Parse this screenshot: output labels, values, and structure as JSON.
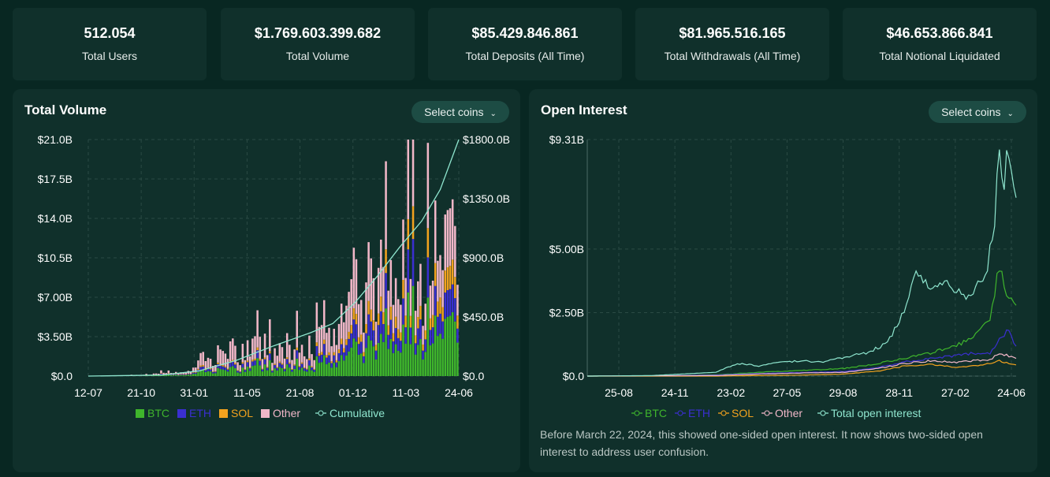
{
  "stats": [
    {
      "value": "512.054",
      "label": "Total Users"
    },
    {
      "value": "$1.769.603.399.682",
      "label": "Total Volume"
    },
    {
      "value": "$85.429.846.861",
      "label": "Total Deposits (All Time)"
    },
    {
      "value": "$81.965.516.165",
      "label": "Total Withdrawals (All Time)"
    },
    {
      "value": "$46.653.866.841",
      "label": "Total Notional Liquidated"
    }
  ],
  "volume_panel": {
    "title": "Total Volume",
    "select_label": "Select coins"
  },
  "oi_panel": {
    "title": "Open Interest",
    "select_label": "Select coins",
    "note": "Before March 22, 2024, this showed one-sided open interest. It now shows two-sided open interest to address user confusion."
  },
  "colors": {
    "btc": "#3fb52c",
    "eth": "#3a2fd0",
    "sol": "#f2a21e",
    "other": "#f1b7c8",
    "cumulative": "#8fe6cf",
    "total_oi": "#8fe6cf"
  },
  "chart_data": [
    {
      "type": "bar",
      "title": "Total Volume",
      "stacked": true,
      "x_ticks": [
        "12-07",
        "21-10",
        "31-01",
        "11-05",
        "21-08",
        "01-12",
        "11-03",
        "24-06"
      ],
      "y_left_ticks": [
        "$0.0",
        "$3.50B",
        "$7.00B",
        "$10.5B",
        "$14.0B",
        "$17.5B",
        "$21.0B"
      ],
      "y_left_lim": [
        0,
        21
      ],
      "y_right_ticks": [
        "$0.0",
        "$450.0B",
        "$900.0B",
        "$1350.0B",
        "$1800.0B"
      ],
      "y_right_lim": [
        0,
        1800
      ],
      "legend": [
        "BTC",
        "ETH",
        "SOL",
        "Other",
        "Cumulative"
      ],
      "legend_position": "bottom",
      "series": [
        {
          "name": "BTC",
          "points": [
            [
              0,
              0.0
            ],
            [
              0.08,
              0.0
            ],
            [
              0.2,
              0.05
            ],
            [
              0.3,
              0.25
            ],
            [
              0.4,
              0.55
            ],
            [
              0.5,
              0.7
            ],
            [
              0.6,
              0.6
            ],
            [
              0.66,
              0.9
            ],
            [
              0.72,
              2.0
            ],
            [
              0.78,
              2.6
            ],
            [
              0.84,
              2.8
            ],
            [
              0.9,
              3.0
            ],
            [
              0.95,
              3.4
            ],
            [
              1.0,
              3.6
            ]
          ]
        },
        {
          "name": "ETH",
          "points": [
            [
              0,
              0.0
            ],
            [
              0.08,
              0.0
            ],
            [
              0.2,
              0.03
            ],
            [
              0.3,
              0.12
            ],
            [
              0.4,
              0.25
            ],
            [
              0.5,
              0.3
            ],
            [
              0.6,
              0.3
            ],
            [
              0.66,
              0.5
            ],
            [
              0.72,
              1.0
            ],
            [
              0.78,
              1.4
            ],
            [
              0.84,
              1.4
            ],
            [
              0.9,
              1.6
            ],
            [
              0.95,
              1.6
            ],
            [
              1.0,
              1.5
            ]
          ]
        },
        {
          "name": "SOL",
          "points": [
            [
              0,
              0.0
            ],
            [
              0.08,
              0.0
            ],
            [
              0.2,
              0.02
            ],
            [
              0.3,
              0.06
            ],
            [
              0.4,
              0.1
            ],
            [
              0.5,
              0.1
            ],
            [
              0.6,
              0.1
            ],
            [
              0.66,
              0.2
            ],
            [
              0.72,
              0.6
            ],
            [
              0.78,
              0.9
            ],
            [
              0.84,
              1.0
            ],
            [
              0.9,
              1.1
            ],
            [
              0.95,
              1.3
            ],
            [
              1.0,
              1.4
            ]
          ]
        },
        {
          "name": "Other",
          "points": [
            [
              0,
              0.0
            ],
            [
              0.08,
              0.0
            ],
            [
              0.2,
              0.1
            ],
            [
              0.3,
              0.5
            ],
            [
              0.4,
              1.2
            ],
            [
              0.5,
              1.4
            ],
            [
              0.6,
              1.3
            ],
            [
              0.66,
              1.6
            ],
            [
              0.72,
              3.2
            ],
            [
              0.78,
              3.6
            ],
            [
              0.84,
              3.3
            ],
            [
              0.9,
              3.4
            ],
            [
              0.95,
              3.4
            ],
            [
              1.0,
              3.3
            ]
          ]
        }
      ],
      "cumulative": {
        "name": "Cumulative",
        "points": [
          [
            0,
            0
          ],
          [
            0.2,
            8
          ],
          [
            0.3,
            40
          ],
          [
            0.4,
            120
          ],
          [
            0.5,
            230
          ],
          [
            0.6,
            330
          ],
          [
            0.66,
            400
          ],
          [
            0.72,
            560
          ],
          [
            0.78,
            760
          ],
          [
            0.84,
            980
          ],
          [
            0.9,
            1180
          ],
          [
            0.95,
            1420
          ],
          [
            1.0,
            1800
          ]
        ]
      }
    },
    {
      "type": "line",
      "title": "Open Interest",
      "x_ticks": [
        "25-08",
        "24-11",
        "23-02",
        "27-05",
        "29-08",
        "28-11",
        "27-02",
        "24-06"
      ],
      "y_ticks": [
        "$0.0",
        "$2.50B",
        "$5.00B",
        "$9.31B"
      ],
      "y_tick_values": [
        0,
        2.5,
        5.0,
        9.31
      ],
      "ylim": [
        0,
        9.31
      ],
      "legend": [
        "BTC",
        "ETH",
        "SOL",
        "Other",
        "Total open interest"
      ],
      "legend_position": "bottom",
      "series": [
        {
          "name": "BTC",
          "points": [
            [
              0,
              0
            ],
            [
              0.15,
              0.01
            ],
            [
              0.3,
              0.05
            ],
            [
              0.4,
              0.15
            ],
            [
              0.5,
              0.22
            ],
            [
              0.6,
              0.3
            ],
            [
              0.68,
              0.5
            ],
            [
              0.74,
              0.7
            ],
            [
              0.8,
              0.9
            ],
            [
              0.86,
              1.2
            ],
            [
              0.9,
              1.5
            ],
            [
              0.94,
              2.2
            ],
            [
              0.96,
              4.4
            ],
            [
              0.98,
              3.0
            ],
            [
              1.0,
              2.8
            ]
          ]
        },
        {
          "name": "ETH",
          "points": [
            [
              0,
              0
            ],
            [
              0.15,
              0.01
            ],
            [
              0.3,
              0.04
            ],
            [
              0.4,
              0.1
            ],
            [
              0.5,
              0.14
            ],
            [
              0.6,
              0.18
            ],
            [
              0.68,
              0.35
            ],
            [
              0.74,
              0.55
            ],
            [
              0.8,
              0.7
            ],
            [
              0.86,
              0.8
            ],
            [
              0.9,
              0.9
            ],
            [
              0.94,
              0.9
            ],
            [
              0.96,
              1.4
            ],
            [
              0.98,
              1.8
            ],
            [
              1.0,
              1.2
            ]
          ]
        },
        {
          "name": "SOL",
          "points": [
            [
              0,
              0
            ],
            [
              0.3,
              0.0
            ],
            [
              0.4,
              0.02
            ],
            [
              0.5,
              0.04
            ],
            [
              0.6,
              0.08
            ],
            [
              0.68,
              0.2
            ],
            [
              0.74,
              0.4
            ],
            [
              0.8,
              0.45
            ],
            [
              0.86,
              0.35
            ],
            [
              0.9,
              0.4
            ],
            [
              0.94,
              0.5
            ],
            [
              0.96,
              0.6
            ],
            [
              1.0,
              0.45
            ]
          ]
        },
        {
          "name": "Other",
          "points": [
            [
              0,
              0
            ],
            [
              0.3,
              0.02
            ],
            [
              0.4,
              0.08
            ],
            [
              0.5,
              0.12
            ],
            [
              0.6,
              0.15
            ],
            [
              0.68,
              0.3
            ],
            [
              0.74,
              0.5
            ],
            [
              0.8,
              0.6
            ],
            [
              0.86,
              0.55
            ],
            [
              0.9,
              0.6
            ],
            [
              0.94,
              0.65
            ],
            [
              0.96,
              0.9
            ],
            [
              1.0,
              0.7
            ]
          ]
        },
        {
          "name": "Total open interest",
          "points": [
            [
              0,
              0
            ],
            [
              0.15,
              0.02
            ],
            [
              0.3,
              0.15
            ],
            [
              0.35,
              0.5
            ],
            [
              0.4,
              0.4
            ],
            [
              0.45,
              0.55
            ],
            [
              0.5,
              0.6
            ],
            [
              0.55,
              0.55
            ],
            [
              0.6,
              0.75
            ],
            [
              0.65,
              0.9
            ],
            [
              0.7,
              1.3
            ],
            [
              0.74,
              2.6
            ],
            [
              0.77,
              4.1
            ],
            [
              0.8,
              3.5
            ],
            [
              0.84,
              3.8
            ],
            [
              0.88,
              3.0
            ],
            [
              0.9,
              3.3
            ],
            [
              0.93,
              4.0
            ],
            [
              0.95,
              6.2
            ],
            [
              0.96,
              9.2
            ],
            [
              0.97,
              7.0
            ],
            [
              0.98,
              9.0
            ],
            [
              0.99,
              7.5
            ],
            [
              1.0,
              6.7
            ]
          ]
        }
      ]
    }
  ]
}
